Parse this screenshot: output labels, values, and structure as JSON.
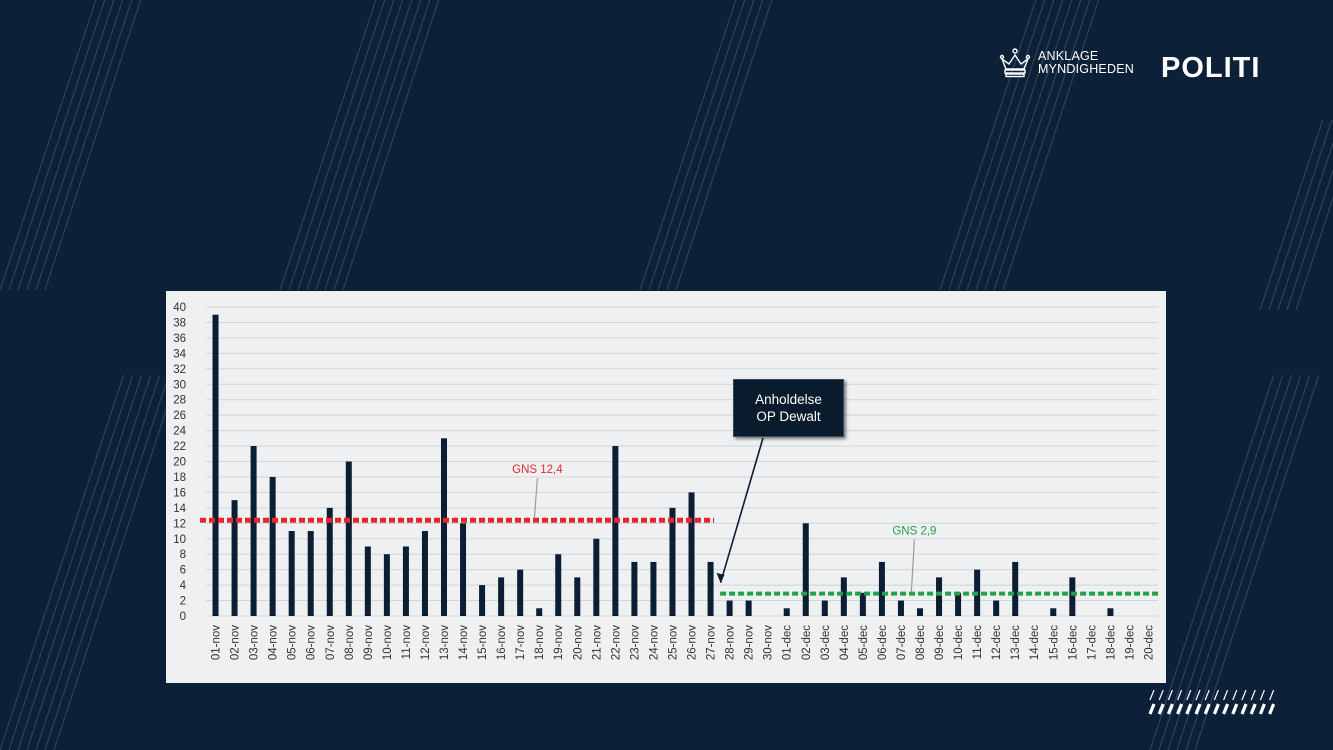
{
  "header": {
    "logo_text_line1": "ANKLAGE",
    "logo_text_line2": "MYNDIGHEDEN",
    "brand": "POLITI"
  },
  "colors": {
    "background": "#0c2038",
    "bars": "#0c1e33",
    "avg_before": "#e8262c",
    "avg_after": "#22a34a"
  },
  "chart_data": {
    "type": "bar",
    "title": "",
    "xlabel": "",
    "ylabel": "",
    "ylim": [
      0,
      40
    ],
    "yticks": [
      0,
      2,
      4,
      6,
      8,
      10,
      12,
      14,
      16,
      18,
      20,
      22,
      24,
      26,
      28,
      30,
      32,
      34,
      36,
      38,
      40
    ],
    "grid": true,
    "categories": [
      "01-nov",
      "02-nov",
      "03-nov",
      "04-nov",
      "05-nov",
      "06-nov",
      "07-nov",
      "08-nov",
      "09-nov",
      "10-nov",
      "11-nov",
      "12-nov",
      "13-nov",
      "14-nov",
      "15-nov",
      "16-nov",
      "17-nov",
      "18-nov",
      "19-nov",
      "20-nov",
      "21-nov",
      "22-nov",
      "23-nov",
      "24-nov",
      "25-nov",
      "26-nov",
      "27-nov",
      "28-nov",
      "29-nov",
      "30-nov",
      "01-dec",
      "02-dec",
      "03-dec",
      "04-dec",
      "05-dec",
      "06-dec",
      "07-dec",
      "08-dec",
      "09-dec",
      "10-dec",
      "11-dec",
      "12-dec",
      "13-dec",
      "14-dec",
      "15-dec",
      "16-dec",
      "17-dec",
      "18-dec",
      "19-dec",
      "20-dec"
    ],
    "values": [
      39,
      15,
      22,
      18,
      11,
      11,
      14,
      20,
      9,
      8,
      9,
      11,
      23,
      12,
      4,
      5,
      6,
      1,
      8,
      5,
      10,
      22,
      7,
      7,
      14,
      16,
      7,
      2,
      2,
      0,
      1,
      12,
      2,
      5,
      3,
      7,
      2,
      1,
      5,
      3,
      6,
      2,
      7,
      0,
      1,
      5,
      0,
      1,
      0,
      0
    ],
    "averages": [
      {
        "label": "GNS 12,4",
        "value": 12.4,
        "from": "01-nov",
        "to": "27-nov"
      },
      {
        "label": "GNS 2,9",
        "value": 2.9,
        "from": "28-nov",
        "to": "20-dec"
      }
    ],
    "annotation": {
      "line1": "Anholdelse",
      "line2": "OP Dewalt",
      "points_to": "27-nov"
    }
  }
}
